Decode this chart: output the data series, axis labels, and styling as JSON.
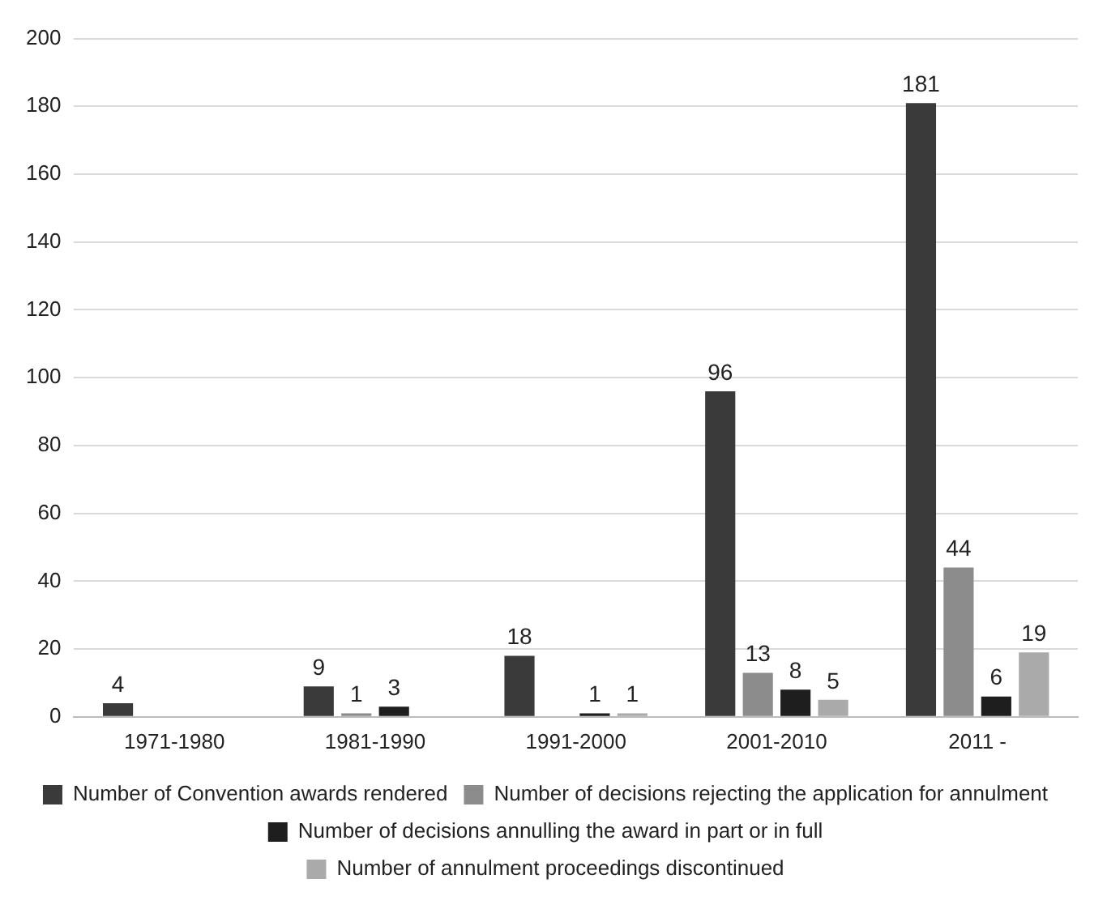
{
  "chart_data": {
    "type": "bar",
    "categories": [
      "1971-1980",
      "1981-1990",
      "1991-2000",
      "2001-2010",
      "2011 -"
    ],
    "series": [
      {
        "name": "Number of Convention awards rendered",
        "color": "#3a3a3a",
        "values": [
          4,
          9,
          18,
          96,
          181
        ]
      },
      {
        "name": "Number of decisions rejecting the application for annulment",
        "color": "#8c8c8c",
        "values": [
          null,
          1,
          null,
          13,
          44
        ]
      },
      {
        "name": "Number of decisions annulling the award in part or in full",
        "color": "#1e1e1e",
        "values": [
          null,
          3,
          1,
          8,
          6
        ]
      },
      {
        "name": "Number of annulment proceedings discontinued",
        "color": "#aaaaaa",
        "values": [
          null,
          null,
          1,
          5,
          19
        ]
      }
    ],
    "ylim": [
      0,
      200
    ],
    "yticks": [
      0,
      20,
      40,
      60,
      80,
      100,
      120,
      140,
      160,
      180,
      200
    ],
    "grid": "y",
    "legend": "bottom",
    "data_labels": true
  }
}
